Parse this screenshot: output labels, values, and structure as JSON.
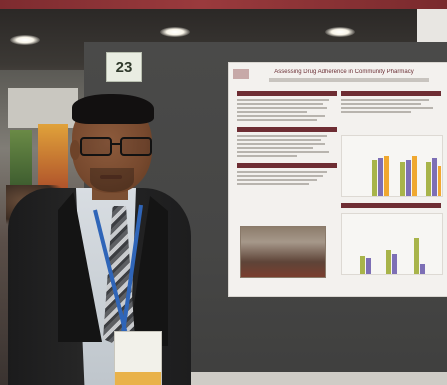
{
  "scene": {
    "board_number": "23",
    "badge_text": "",
    "poster_title": "Assessing Drug Adherence in Community Pharmacy"
  },
  "colors": {
    "frame_maroon": "#8a3034",
    "poster_accent": "#6e2d33",
    "lanyard_blue": "#2f65b8",
    "badge_band": "#e9b24a",
    "chart_olive": "#a8b44a",
    "chart_orange": "#f0a830",
    "chart_purple": "#7d6fb5"
  }
}
